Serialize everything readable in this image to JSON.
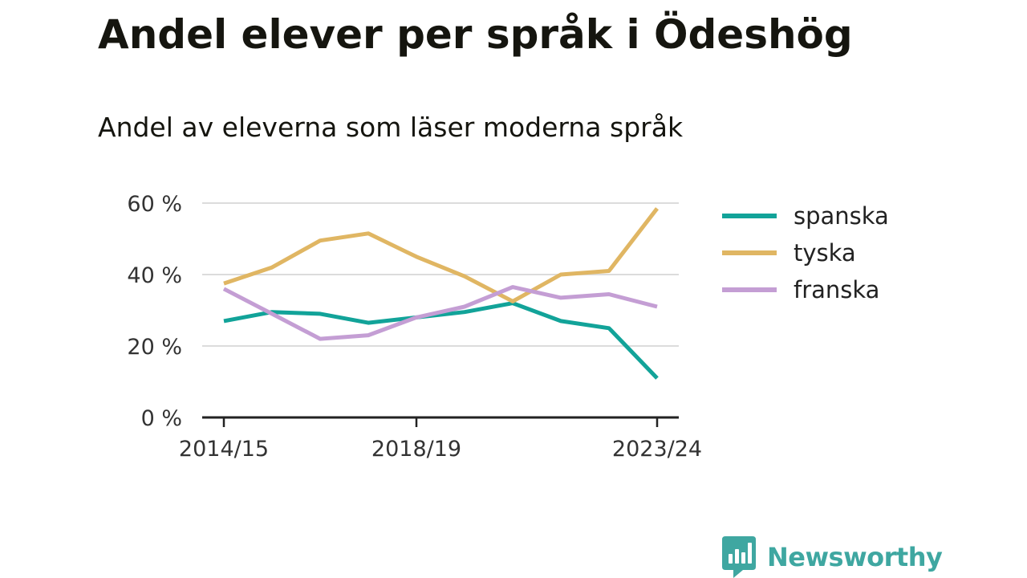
{
  "chart_data": {
    "type": "line",
    "title": "Andel elever per språk i Ödeshög",
    "subtitle": "Andel av eleverna som läser moderna språk",
    "xlabel": "",
    "ylabel": "",
    "x": [
      "2014/15",
      "2015/16",
      "2016/17",
      "2017/18",
      "2018/19",
      "2019/20",
      "2020/21",
      "2021/22",
      "2022/23",
      "2023/24"
    ],
    "x_tick_labels": [
      "2014/15",
      "2018/19",
      "2023/24"
    ],
    "y_ticks": [
      0,
      20,
      40,
      60
    ],
    "y_tick_labels": [
      "0 %",
      "20 %",
      "40 %",
      "60 %"
    ],
    "ylim": [
      0,
      60
    ],
    "grid": true,
    "legend_position": "right",
    "series": [
      {
        "name": "spanska",
        "color": "#12a399",
        "values": [
          27,
          29.5,
          29,
          26.5,
          28,
          29.5,
          32,
          27,
          25,
          11
        ]
      },
      {
        "name": "tyska",
        "color": "#e0b663",
        "values": [
          37.5,
          42,
          49.5,
          51.5,
          45,
          39.5,
          32.5,
          40,
          41,
          58.5
        ]
      },
      {
        "name": "franska",
        "color": "#c49ed4",
        "values": [
          36,
          29,
          22,
          23,
          28,
          31,
          36.5,
          33.5,
          34.5,
          31
        ]
      }
    ]
  },
  "branding": {
    "name": "Newsworthy",
    "icon": "newsworthy-logo-icon",
    "color": "#3fa7a1"
  }
}
